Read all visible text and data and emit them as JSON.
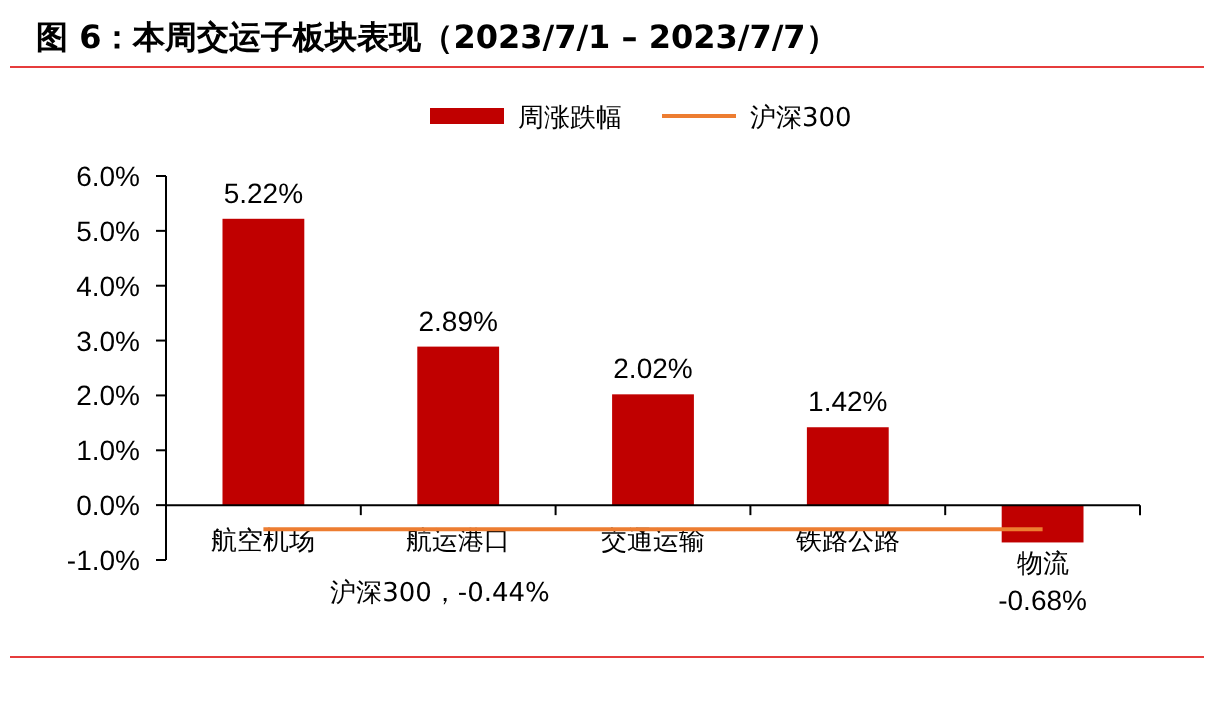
{
  "chart_data": {
    "type": "bar",
    "title": "图 6：本周交运子板块表现（2023/7/1 – 2023/7/7）",
    "categories": [
      "航空机场",
      "航运港口",
      "交通运输",
      "铁路公路",
      "物流"
    ],
    "series": [
      {
        "name": "周涨跌幅",
        "color": "#c00000",
        "values": [
          5.22,
          2.89,
          2.02,
          1.42,
          -0.68
        ],
        "value_labels": [
          "5.22%",
          "2.89%",
          "2.02%",
          "1.42%",
          "-0.68%"
        ]
      },
      {
        "name": "沪深300",
        "type": "line",
        "color": "#ed7d31",
        "values": [
          -0.44,
          -0.44,
          -0.44,
          -0.44,
          -0.44
        ]
      }
    ],
    "ylim": [
      -1,
      6
    ],
    "yticks": [
      {
        "value": -1,
        "label": "-1.0%"
      },
      {
        "value": 0,
        "label": "0.0%"
      },
      {
        "value": 1,
        "label": "1.0%"
      },
      {
        "value": 2,
        "label": "2.0%"
      },
      {
        "value": 3,
        "label": "3.0%"
      },
      {
        "value": 4,
        "label": "4.0%"
      },
      {
        "value": 5,
        "label": "5.0%"
      },
      {
        "value": 6,
        "label": "6.0%"
      }
    ],
    "legend": "top",
    "grid": false,
    "annotations": [
      "沪深300，-0.44%"
    ]
  }
}
